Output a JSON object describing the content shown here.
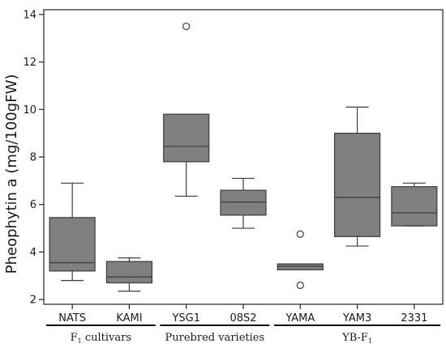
{
  "chart_data": {
    "type": "box",
    "ylabel": "Pheophytin a (mg/100gFW)",
    "ylim": [
      1.8,
      14.2
    ],
    "yticks": [
      2,
      4,
      6,
      8,
      10,
      12,
      14
    ],
    "grid": false,
    "box_color": "#808080",
    "line_color": "#3c3c3c",
    "categories": [
      "NATS",
      "KAMI",
      "YSG1",
      "08S2",
      "YAMA",
      "YAM3",
      "2331"
    ],
    "boxes": [
      {
        "whisker_low": 2.8,
        "q1": 3.2,
        "median": 3.55,
        "q3": 5.45,
        "whisker_high": 6.9,
        "outliers": []
      },
      {
        "whisker_low": 2.35,
        "q1": 2.7,
        "median": 2.95,
        "q3": 3.6,
        "whisker_high": 3.75,
        "outliers": []
      },
      {
        "whisker_low": 6.35,
        "q1": 7.8,
        "median": 8.45,
        "q3": 9.8,
        "whisker_high": 9.8,
        "outliers": [
          13.5
        ]
      },
      {
        "whisker_low": 5.0,
        "q1": 5.55,
        "median": 6.1,
        "q3": 6.6,
        "whisker_high": 7.1,
        "outliers": []
      },
      {
        "whisker_low": 3.25,
        "q1": 3.25,
        "median": 3.4,
        "q3": 3.5,
        "whisker_high": 3.5,
        "outliers": [
          4.75,
          2.6
        ]
      },
      {
        "whisker_low": 4.25,
        "q1": 4.65,
        "median": 6.3,
        "q3": 9.0,
        "whisker_high": 10.1,
        "outliers": []
      },
      {
        "whisker_low": 5.1,
        "q1": 5.1,
        "median": 5.65,
        "q3": 6.75,
        "whisker_high": 6.9,
        "outliers": []
      }
    ],
    "groups": [
      {
        "label": "F",
        "label_sub": "1",
        "label_rest": " cultivars",
        "categories": [
          "NATS",
          "KAMI"
        ]
      },
      {
        "label": "Purebred varieties",
        "label_sub": "",
        "label_rest": "",
        "categories": [
          "YSG1",
          "08S2"
        ]
      },
      {
        "label": "YB-F",
        "label_sub": "1",
        "label_rest": "",
        "categories": [
          "YAMA",
          "YAM3",
          "2331"
        ]
      }
    ]
  }
}
